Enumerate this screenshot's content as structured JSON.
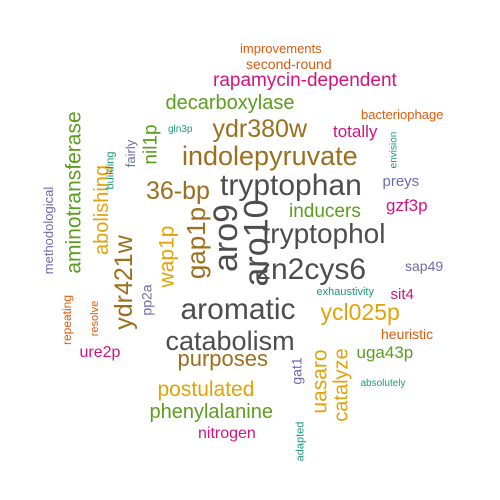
{
  "colors": {
    "dark_gray": "#4d4d4d",
    "olive_brown": "#9b6f1e",
    "green": "#5b9d1e",
    "magenta": "#d6137c",
    "purple": "#6b6bb0",
    "orange": "#dd5a0b",
    "gold": "#e2a208",
    "teal": "#1b9b77"
  },
  "words": [
    {
      "text": "tryptophan",
      "color": "dark_gray"
    },
    {
      "text": "tryptophol",
      "color": "dark_gray"
    },
    {
      "text": "zn2cys6",
      "color": "dark_gray"
    },
    {
      "text": "aromatic",
      "color": "dark_gray"
    },
    {
      "text": "catabolism",
      "color": "dark_gray"
    },
    {
      "text": "aro9",
      "color": "dark_gray",
      "vertical": true
    },
    {
      "text": "aro10",
      "color": "dark_gray",
      "vertical": true
    },
    {
      "text": "indolepyruvate",
      "color": "olive_brown"
    },
    {
      "text": "36-bp",
      "color": "olive_brown"
    },
    {
      "text": "ydr380w",
      "color": "olive_brown"
    },
    {
      "text": "ydr421w",
      "color": "olive_brown",
      "vertical": true
    },
    {
      "text": "gap1p",
      "color": "olive_brown",
      "vertical": true
    },
    {
      "text": "purposes",
      "color": "olive_brown"
    },
    {
      "text": "rapamycin-dependent",
      "color": "magenta"
    },
    {
      "text": "decarboxylase",
      "color": "green"
    },
    {
      "text": "aminotransferase",
      "color": "green",
      "vertical": true
    },
    {
      "text": "nil1p",
      "color": "green",
      "vertical": true
    },
    {
      "text": "inducers",
      "color": "green"
    },
    {
      "text": "phenylalanine",
      "color": "green"
    },
    {
      "text": "uga43p",
      "color": "green"
    },
    {
      "text": "ycl025p",
      "color": "gold"
    },
    {
      "text": "wap1p",
      "color": "gold",
      "vertical": true
    },
    {
      "text": "abolishing",
      "color": "gold",
      "vertical": true
    },
    {
      "text": "postulated",
      "color": "gold"
    },
    {
      "text": "catalyze",
      "color": "gold",
      "vertical": true
    },
    {
      "text": "uasaro",
      "color": "gold",
      "vertical": true
    },
    {
      "text": "totally",
      "color": "magenta"
    },
    {
      "text": "gzf3p",
      "color": "magenta"
    },
    {
      "text": "sit4",
      "color": "magenta"
    },
    {
      "text": "nitrogen",
      "color": "magenta"
    },
    {
      "text": "ure2p",
      "color": "magenta"
    },
    {
      "text": "improvements",
      "color": "orange"
    },
    {
      "text": "second-round",
      "color": "orange"
    },
    {
      "text": "bacteriophage",
      "color": "orange"
    },
    {
      "text": "heuristic",
      "color": "orange"
    },
    {
      "text": "repeating",
      "color": "orange",
      "vertical": true
    },
    {
      "text": "resolve",
      "color": "orange",
      "vertical": true
    },
    {
      "text": "preys",
      "color": "purple"
    },
    {
      "text": "sap49",
      "color": "purple"
    },
    {
      "text": "fairly",
      "color": "purple",
      "vertical": true
    },
    {
      "text": "methodological",
      "color": "purple",
      "vertical": true
    },
    {
      "text": "pp2a",
      "color": "purple",
      "vertical": true
    },
    {
      "text": "gat1",
      "color": "purple",
      "vertical": true
    },
    {
      "text": "gln3p",
      "color": "teal"
    },
    {
      "text": "envision",
      "color": "teal",
      "vertical": true
    },
    {
      "text": "building",
      "color": "teal",
      "vertical": true
    },
    {
      "text": "exhaustivity",
      "color": "teal"
    },
    {
      "text": "absolutely",
      "color": "teal"
    },
    {
      "text": "adapted",
      "color": "teal",
      "vertical": true
    }
  ]
}
